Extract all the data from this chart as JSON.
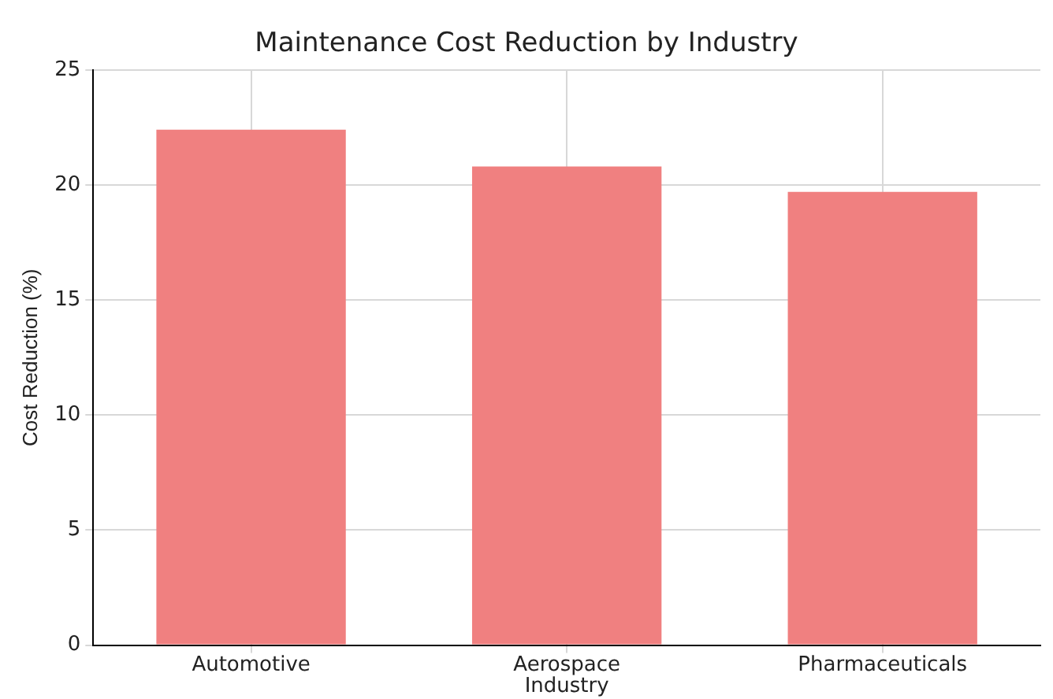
{
  "chart_data": {
    "type": "bar",
    "title": "Maintenance Cost Reduction by Industry",
    "xlabel": "Industry",
    "ylabel": "Cost Reduction (%)",
    "categories": [
      "Automotive",
      "Aerospace",
      "Pharmaceuticals"
    ],
    "values": [
      22.4,
      20.8,
      19.7
    ],
    "color": "#f08080",
    "ylim": [
      0,
      25
    ],
    "yticks": [
      0,
      5,
      10,
      15,
      20,
      25
    ],
    "grid": true
  }
}
